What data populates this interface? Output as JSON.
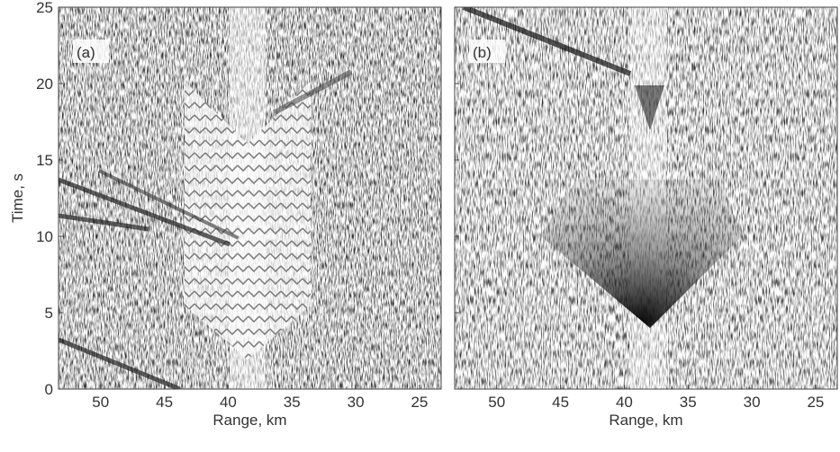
{
  "chart_data": [
    {
      "type": "image",
      "label": "(a)",
      "xlabel": "Range, km",
      "ylabel": "Time, s",
      "xlim": [
        53.3,
        23.3
      ],
      "xticks": [
        50,
        45,
        40,
        35,
        30,
        25
      ],
      "ylim": [
        0,
        25
      ],
      "yticks": [
        0,
        5,
        10,
        15,
        20,
        25
      ]
    },
    {
      "type": "image",
      "label": "(b)",
      "xlabel": "Range, km",
      "xlim": [
        53.3,
        23.3
      ],
      "xticks": [
        50,
        45,
        40,
        35,
        30,
        25
      ],
      "ylim": [
        0,
        25
      ],
      "yticks": [
        0,
        5,
        10,
        15,
        20,
        25
      ]
    }
  ]
}
